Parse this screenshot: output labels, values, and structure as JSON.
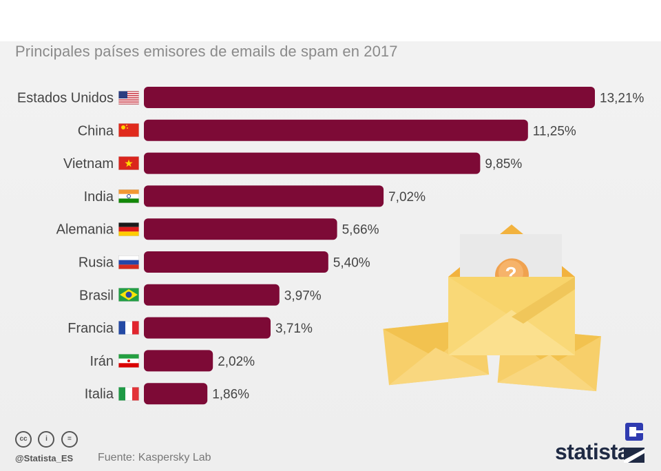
{
  "title": "Principales países emisores de emails de spam en 2017",
  "chart_data": {
    "type": "bar",
    "orientation": "horizontal",
    "categories": [
      "Estados Unidos",
      "China",
      "Vietnam",
      "India",
      "Alemania",
      "Rusia",
      "Brasil",
      "Francia",
      "Irán",
      "Italia"
    ],
    "values": [
      13.21,
      11.25,
      9.85,
      7.02,
      5.66,
      5.4,
      3.97,
      3.71,
      2.02,
      1.86
    ],
    "value_labels": [
      "13,21%",
      "11,25%",
      "9,85%",
      "7,02%",
      "5,66%",
      "5,40%",
      "3,97%",
      "3,71%",
      "2,02%",
      "1,86%"
    ],
    "title": "Principales países emisores de emails de spam en 2017",
    "xlabel": "",
    "ylabel": "",
    "xlim": [
      0,
      13.21
    ],
    "grid": false,
    "bar_color": "#7d0a36"
  },
  "flags": [
    "us-flag-icon",
    "china-flag-icon",
    "vietnam-flag-icon",
    "india-flag-icon",
    "germany-flag-icon",
    "russia-flag-icon",
    "brazil-flag-icon",
    "france-flag-icon",
    "iran-flag-icon",
    "italy-flag-icon"
  ],
  "illustration": "spam-envelope-question-icon",
  "footer": {
    "handle": "@Statista_ES",
    "source": "Fuente: Kaspersky Lab",
    "license_icons": [
      "cc-icon",
      "attribution-icon",
      "no-derivatives-icon"
    ],
    "license_glyphs": [
      "cc",
      "i",
      "="
    ]
  },
  "brand": "statista"
}
